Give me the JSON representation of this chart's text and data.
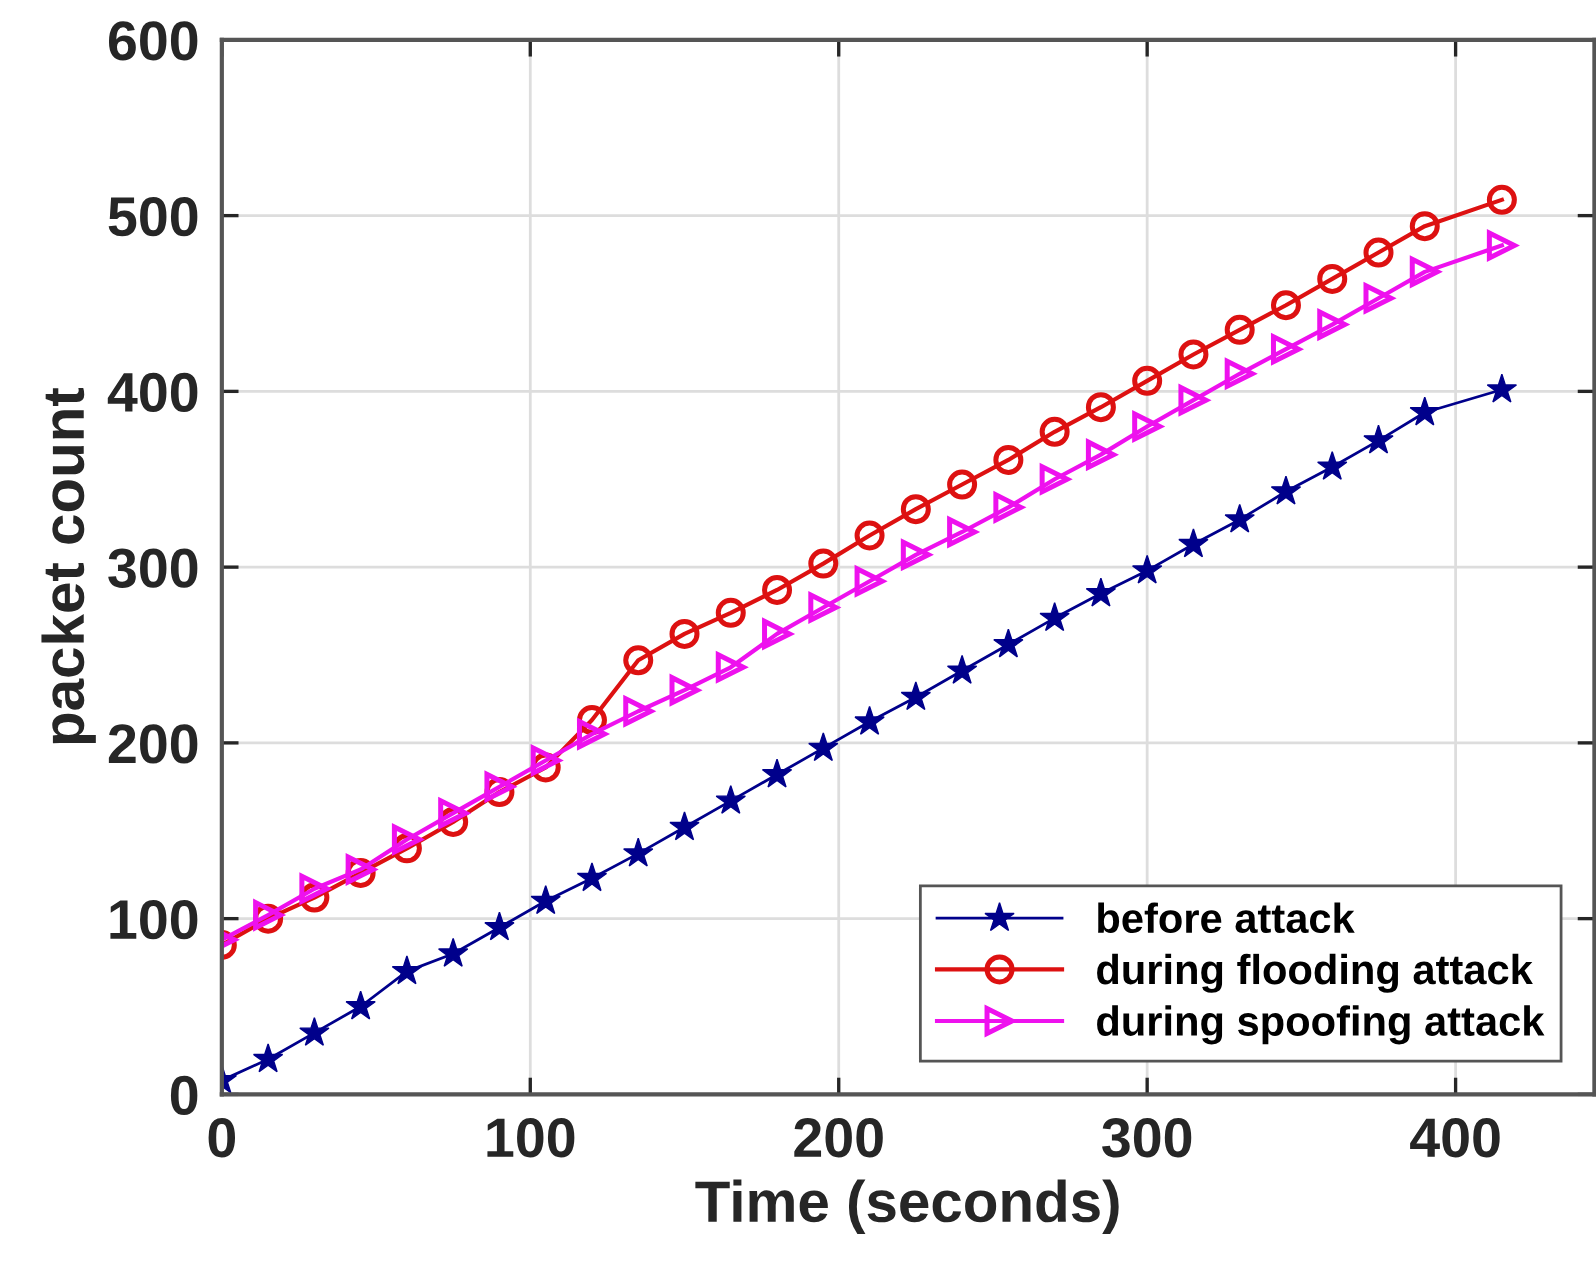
{
  "chart_data": {
    "type": "line",
    "xlabel": "Time (seconds)",
    "ylabel": "packet count",
    "x": [
      0,
      15,
      30,
      45,
      60,
      75,
      90,
      105,
      120,
      135,
      150,
      165,
      180,
      195,
      210,
      225,
      240,
      255,
      270,
      285,
      300,
      315,
      330,
      345,
      360,
      375,
      390,
      415
    ],
    "series": [
      {
        "name": "before attack",
        "color": "#00008b",
        "marker": "star",
        "values": [
          8,
          20,
          35,
          50,
          70,
          80,
          95,
          110,
          123,
          137,
          152,
          167,
          182,
          197,
          212,
          226,
          241,
          256,
          271,
          285,
          298,
          313,
          327,
          343,
          357,
          372,
          388,
          401
        ]
      },
      {
        "name": "during flooding attack",
        "color": "#dd1111",
        "marker": "circle",
        "values": [
          85,
          100,
          112,
          126,
          140,
          155,
          172,
          186,
          213,
          247,
          262,
          274,
          287,
          302,
          318,
          333,
          347,
          361,
          377,
          391,
          406,
          421,
          435,
          449,
          464,
          479,
          494,
          509
        ]
      },
      {
        "name": "during spoofing attack",
        "color": "#ee11ee",
        "marker": "triangle",
        "values": [
          88,
          102,
          117,
          128,
          145,
          160,
          175,
          190,
          205,
          218,
          230,
          243,
          262,
          277,
          292,
          307,
          320,
          334,
          350,
          364,
          380,
          395,
          410,
          424,
          438,
          453,
          468,
          483
        ]
      }
    ],
    "xlim": [
      0,
      445
    ],
    "ylim": [
      0,
      600
    ],
    "xticks": [
      0,
      100,
      200,
      300,
      400
    ],
    "yticks": [
      0,
      100,
      200,
      300,
      400,
      500,
      600
    ],
    "grid": true,
    "legend": "bottom right",
    "line_style": "solid"
  }
}
